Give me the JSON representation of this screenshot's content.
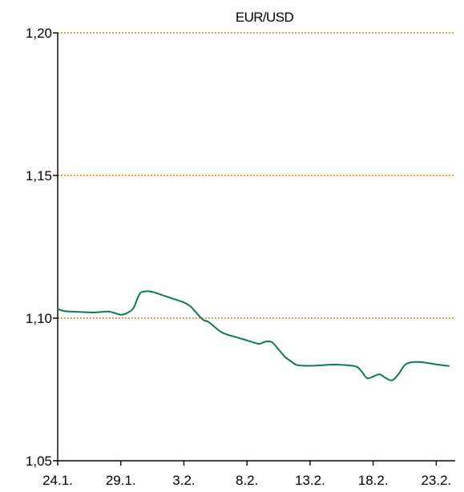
{
  "chart_data": {
    "type": "line",
    "title": "EUR/USD",
    "xlabel": "",
    "ylabel": "",
    "ylim": [
      1.05,
      1.2
    ],
    "yticks": [
      "1,05",
      "1,10",
      "1,15",
      "1,20"
    ],
    "ytick_values": [
      1.05,
      1.1,
      1.15,
      1.2
    ],
    "gridlines_at": [
      1.1,
      1.15,
      1.2
    ],
    "xticks": [
      "24.1.",
      "29.1.",
      "3.2.",
      "8.2.",
      "13.2.",
      "18.2.",
      "23.2."
    ],
    "xtick_days": [
      0,
      5,
      10,
      15,
      20,
      25,
      30
    ],
    "xlim_days": [
      0,
      31.5
    ],
    "series": [
      {
        "x": [
          0,
          0.5,
          1,
          2,
          3,
          4,
          4.5,
          5,
          5.5,
          6,
          6.5,
          7,
          7.5,
          8,
          9,
          10,
          10.5,
          11,
          11.5,
          12,
          13,
          14,
          15,
          15.5,
          16,
          16.5,
          17,
          17.5,
          18,
          18.5,
          19,
          20,
          21,
          22,
          23.5,
          24,
          24.5,
          25,
          25.5,
          26,
          26.5,
          27,
          27.5,
          28,
          28.5,
          29,
          30,
          31
        ],
        "values": [
          1.1032,
          1.1025,
          1.1023,
          1.1021,
          1.102,
          1.1023,
          1.1018,
          1.1012,
          1.1018,
          1.1035,
          1.1085,
          1.1094,
          1.1092,
          1.1085,
          1.107,
          1.1055,
          1.1042,
          1.1018,
          1.0995,
          1.0985,
          1.095,
          1.0935,
          1.0922,
          1.0915,
          1.091,
          1.0918,
          1.0915,
          1.089,
          1.0865,
          1.0848,
          1.0835,
          1.0833,
          1.0835,
          1.0837,
          1.0832,
          1.0818,
          1.079,
          1.0795,
          1.0803,
          1.079,
          1.0782,
          1.0803,
          1.0835,
          1.0845,
          1.0846,
          1.0845,
          1.0838,
          1.0832
        ]
      }
    ],
    "colors": {
      "line": "#0b7a4e",
      "grid": "#e57e1c",
      "axis": "#000000"
    },
    "grid": true,
    "grid_style": "dotted"
  }
}
